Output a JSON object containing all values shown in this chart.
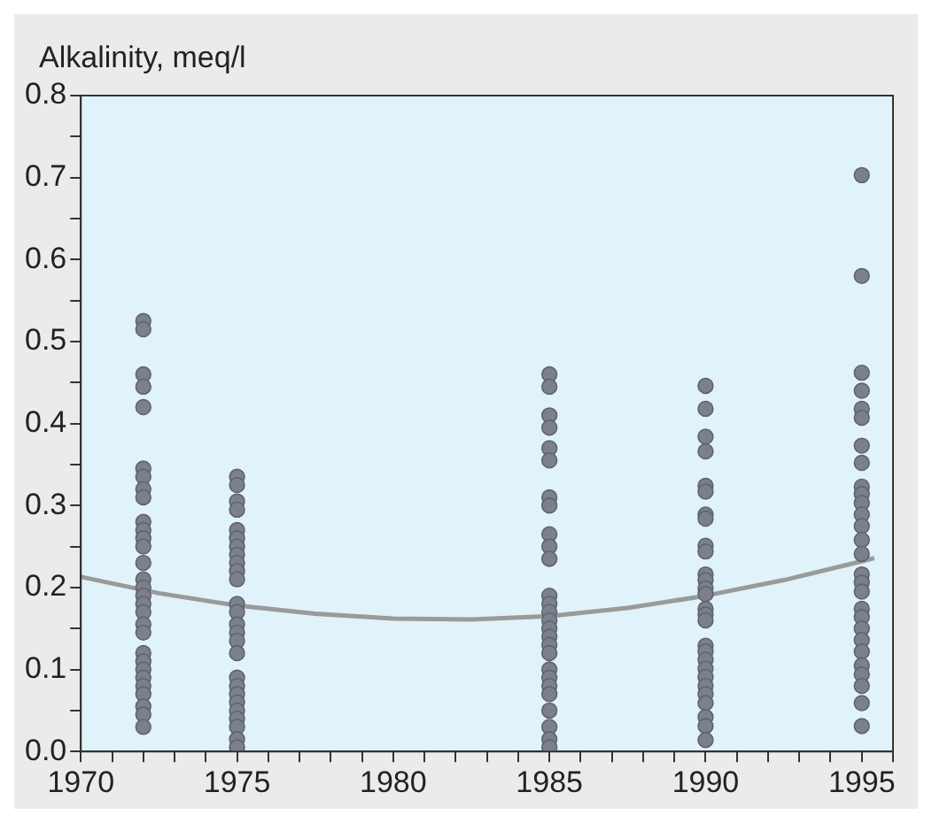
{
  "chart_data": {
    "type": "scatter",
    "ylabel": "Alkalinity, meq/l",
    "xlim": [
      1970,
      1996
    ],
    "xticks": [
      1970,
      {
        "value": 1971,
        "label": null
      },
      {
        "value": 1972,
        "label": null
      },
      {
        "value": 1973,
        "label": null
      },
      {
        "value": 1974,
        "label": null
      },
      1975,
      {
        "value": 1976,
        "label": null
      },
      {
        "value": 1977,
        "label": null
      },
      {
        "value": 1978,
        "label": null
      },
      {
        "value": 1979,
        "label": null
      },
      1980,
      {
        "value": 1981,
        "label": null
      },
      {
        "value": 1982,
        "label": null
      },
      {
        "value": 1983,
        "label": null
      },
      {
        "value": 1984,
        "label": null
      },
      1985,
      {
        "value": 1986,
        "label": null
      },
      {
        "value": 1987,
        "label": null
      },
      {
        "value": 1988,
        "label": null
      },
      {
        "value": 1989,
        "label": null
      },
      1990,
      {
        "value": 1991,
        "label": null
      },
      {
        "value": 1992,
        "label": null
      },
      {
        "value": 1993,
        "label": null
      },
      {
        "value": 1994,
        "label": null
      },
      1995,
      {
        "value": 1996,
        "label": null
      }
    ],
    "ylim": [
      0,
      0.8
    ],
    "yticks": [
      {
        "value": 0,
        "label": "0.0"
      },
      {
        "value": 0.05,
        "label": null
      },
      0.1,
      {
        "value": 0.15,
        "label": null
      },
      0.2,
      {
        "value": 0.25,
        "label": null
      },
      0.3,
      {
        "value": 0.35,
        "label": null
      },
      0.4,
      {
        "value": 0.45,
        "label": null
      },
      0.5,
      {
        "value": 0.55,
        "label": null
      },
      0.6,
      {
        "value": 0.65,
        "label": null
      },
      0.7,
      {
        "value": 0.75,
        "label": null
      },
      0.8
    ],
    "grid": false,
    "legend": false,
    "marker": "circle",
    "series": [
      {
        "type": "scatter",
        "color": "#7b808b",
        "x": [
          1972,
          1972,
          1972,
          1972,
          1972,
          1972,
          1972,
          1972,
          1972,
          1972,
          1972,
          1972,
          1972,
          1972,
          1972,
          1972,
          1972,
          1972,
          1972,
          1972,
          1972,
          1972,
          1972,
          1972,
          1972,
          1972,
          1972,
          1972,
          1972,
          1972,
          1975,
          1975,
          1975,
          1975,
          1975,
          1975,
          1975,
          1975,
          1975,
          1975,
          1975,
          1975,
          1975,
          1975,
          1975,
          1975,
          1975,
          1975,
          1975,
          1975,
          1975,
          1975,
          1975,
          1975,
          1975,
          1975,
          1985,
          1985,
          1985,
          1985,
          1985,
          1985,
          1985,
          1985,
          1985,
          1985,
          1985,
          1985,
          1985,
          1985,
          1985,
          1985,
          1985,
          1985,
          1985,
          1985,
          1985,
          1985,
          1985,
          1985,
          1985,
          1985,
          1985,
          1990,
          1990,
          1990,
          1990,
          1990,
          1990,
          1990,
          1990,
          1990,
          1990,
          1990,
          1990,
          1990,
          1990,
          1990,
          1990,
          1990,
          1990,
          1990,
          1990,
          1990,
          1990,
          1990,
          1990,
          1990,
          1990,
          1990,
          1990,
          1995,
          1995,
          1995,
          1995,
          1995,
          1995,
          1995,
          1995,
          1995,
          1995,
          1995,
          1995,
          1995,
          1995,
          1995,
          1995,
          1995,
          1995,
          1995,
          1995,
          1995,
          1995,
          1995,
          1995,
          1995,
          1995,
          1995,
          1995
        ],
        "values": [
          0.525,
          0.515,
          0.46,
          0.445,
          0.42,
          0.345,
          0.335,
          0.32,
          0.31,
          0.28,
          0.27,
          0.26,
          0.25,
          0.23,
          0.21,
          0.2,
          0.19,
          0.18,
          0.17,
          0.155,
          0.145,
          0.12,
          0.11,
          0.1,
          0.09,
          0.08,
          0.07,
          0.055,
          0.045,
          0.03,
          0.335,
          0.325,
          0.305,
          0.295,
          0.27,
          0.26,
          0.25,
          0.24,
          0.23,
          0.22,
          0.21,
          0.18,
          0.17,
          0.155,
          0.145,
          0.135,
          0.12,
          0.09,
          0.08,
          0.07,
          0.06,
          0.05,
          0.04,
          0.03,
          0.015,
          0.005,
          0.46,
          0.445,
          0.41,
          0.395,
          0.37,
          0.355,
          0.31,
          0.3,
          0.265,
          0.25,
          0.235,
          0.19,
          0.18,
          0.17,
          0.16,
          0.15,
          0.14,
          0.13,
          0.12,
          0.1,
          0.09,
          0.08,
          0.07,
          0.05,
          0.03,
          0.015,
          0.005,
          0.446,
          0.418,
          0.384,
          0.366,
          0.324,
          0.317,
          0.289,
          0.284,
          0.251,
          0.244,
          0.216,
          0.209,
          0.199,
          0.192,
          0.174,
          0.167,
          0.16,
          0.129,
          0.122,
          0.112,
          0.101,
          0.091,
          0.08,
          0.07,
          0.059,
          0.042,
          0.031,
          0.014,
          0.703,
          0.58,
          0.462,
          0.44,
          0.418,
          0.407,
          0.373,
          0.352,
          0.323,
          0.314,
          0.303,
          0.289,
          0.275,
          0.258,
          0.241,
          0.216,
          0.206,
          0.195,
          0.174,
          0.164,
          0.15,
          0.136,
          0.122,
          0.105,
          0.094,
          0.08,
          0.059,
          0.031
        ]
      },
      {
        "type": "line",
        "color": "#9a9a9a",
        "marker": "none",
        "line_style": "solid",
        "x": [
          1970,
          1972.5,
          1975,
          1977.5,
          1980,
          1982.5,
          1985,
          1987.5,
          1990,
          1992.5,
          1995,
          1995.4
        ],
        "values": [
          0.213,
          0.193,
          0.178,
          0.168,
          0.162,
          0.161,
          0.165,
          0.175,
          0.19,
          0.209,
          0.232,
          0.236
        ]
      }
    ]
  }
}
